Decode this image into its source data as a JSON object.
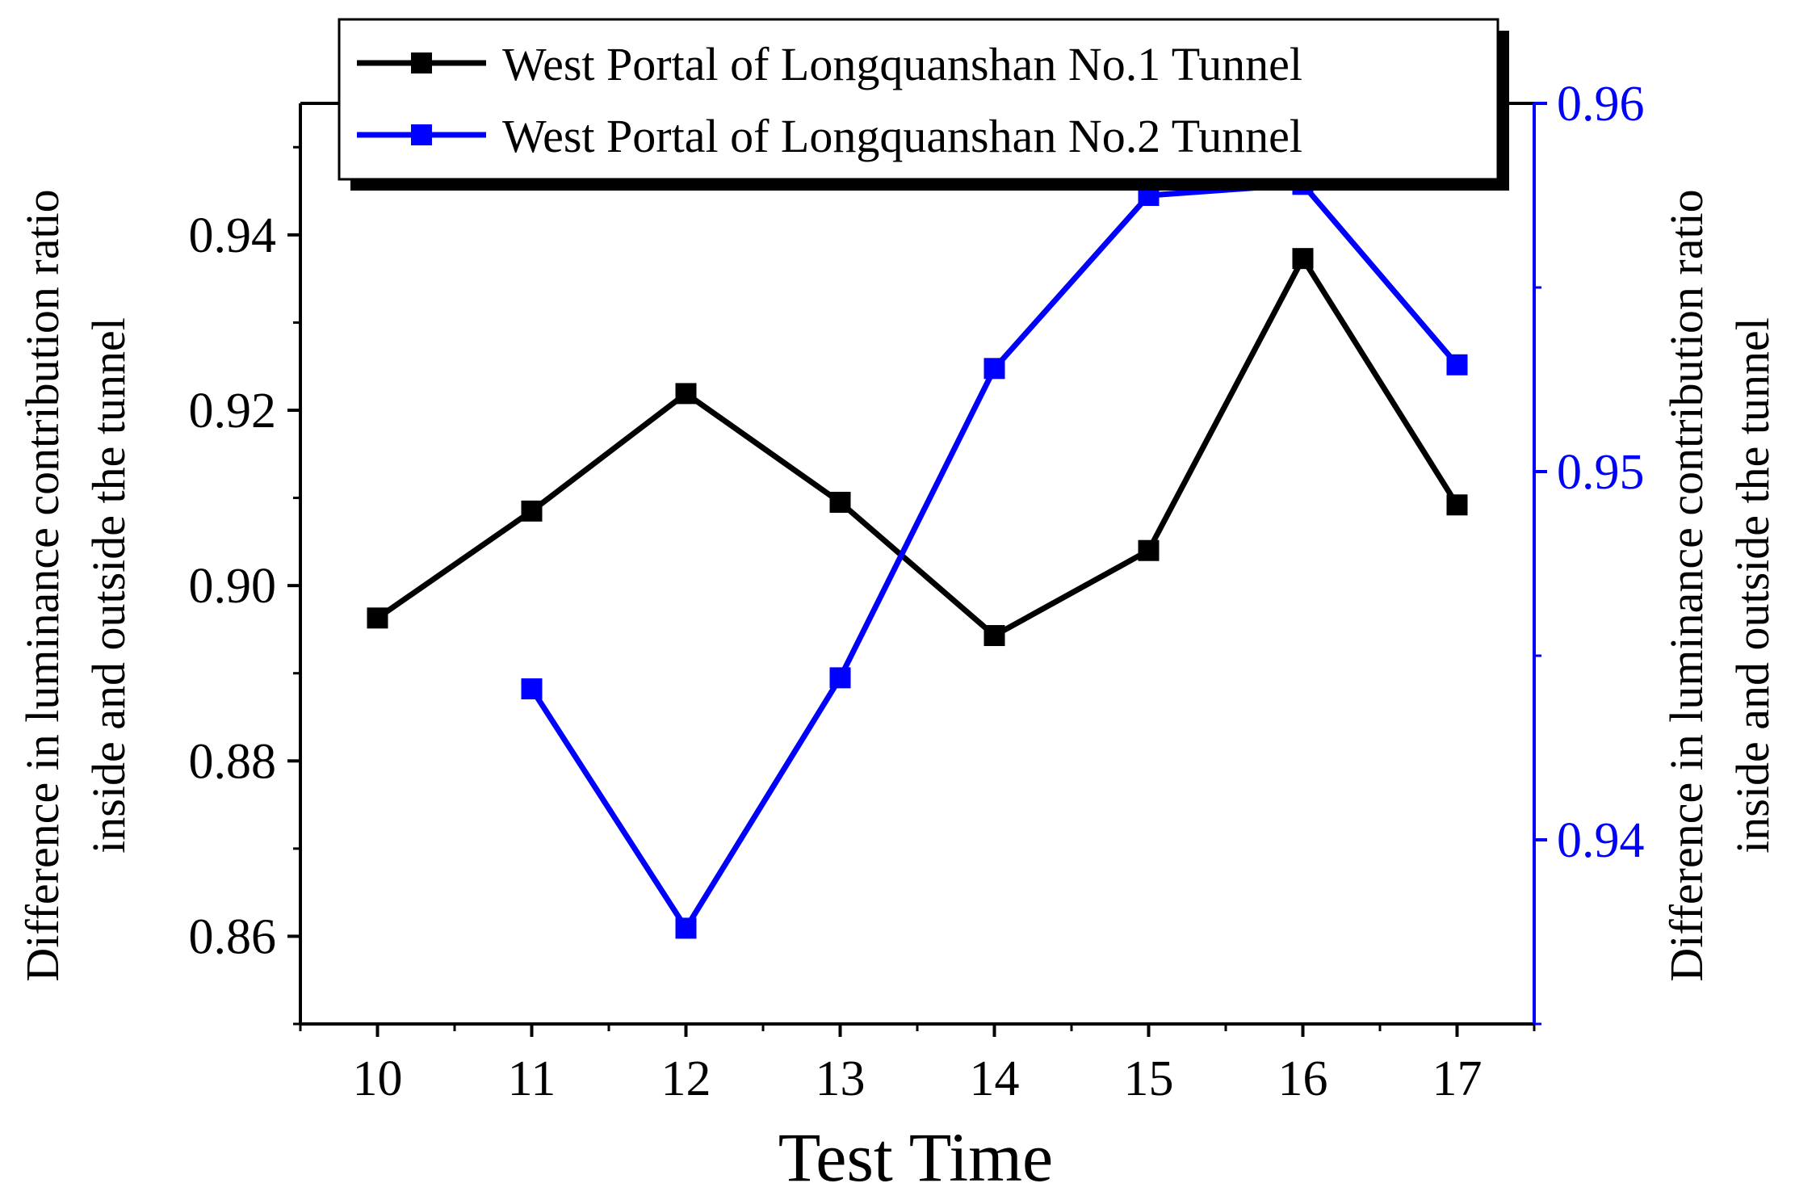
{
  "chart_data": {
    "type": "line",
    "title": "",
    "xlabel": "Test Time",
    "ylabel_left": [
      "Difference in luminance contribution ratio",
      "inside and outside the tunnel"
    ],
    "ylabel_right": [
      "Difference in luminance contribution ratio",
      "inside and outside the tunnel"
    ],
    "x": [
      10,
      11,
      12,
      13,
      14,
      15,
      16,
      17
    ],
    "x_ticks": [
      "10",
      "11",
      "12",
      "13",
      "14",
      "15",
      "16",
      "17"
    ],
    "xlim": [
      9.5,
      17.5
    ],
    "ylim_left": [
      0.85,
      0.955
    ],
    "ylim_right": [
      0.935,
      0.96
    ],
    "y_ticks_left": [
      "0.86",
      "0.88",
      "0.90",
      "0.92",
      "0.94"
    ],
    "y_ticks_right": [
      "0.94",
      "0.95",
      "0.96"
    ],
    "legend_position": "top",
    "series": [
      {
        "name": "West Portal of Longquanshan No.1 Tunnel",
        "axis": "left",
        "color": "#000000",
        "x": [
          10,
          11,
          12,
          13,
          14,
          15,
          16,
          17
        ],
        "values": [
          0.8963,
          0.9085,
          0.9219,
          0.9095,
          0.8943,
          0.904,
          0.9373,
          0.9092
        ]
      },
      {
        "name": "West Portal of Longquanshan No.2 Tunnel",
        "axis": "right",
        "color": "#0000ff",
        "x": [
          11,
          12,
          13,
          14,
          15,
          16,
          17
        ],
        "values": [
          0.9441,
          0.9376,
          0.9444,
          0.9528,
          0.9575,
          0.9578,
          0.9529
        ]
      }
    ]
  }
}
